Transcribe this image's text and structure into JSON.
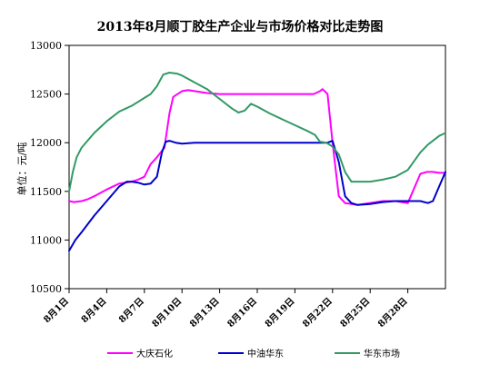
{
  "chart_data": {
    "type": "line",
    "title": "2013年8月顺丁胶生产企业与市场价格对比走势图",
    "ylabel": "单位：元/吨",
    "xlabel": "",
    "ylim": [
      10500,
      13000
    ],
    "yticks": [
      10500,
      11000,
      11500,
      12000,
      12500,
      13000
    ],
    "xlim": [
      1,
      31
    ],
    "x_tick_days": [
      1,
      4,
      7,
      10,
      13,
      16,
      19,
      22,
      25,
      28
    ],
    "x_tick_labels": [
      "8月1日",
      "8月4日",
      "8月7日",
      "8月10日",
      "8月13日",
      "8月16日",
      "8月19日",
      "8月22日",
      "8月25日",
      "8月28日"
    ],
    "grid": false,
    "legend_position": "bottom",
    "series": [
      {
        "name": "大庆石化",
        "color": "#ff00ff",
        "x": [
          1,
          1.4,
          2,
          2.5,
          3,
          4,
          5,
          6,
          6.5,
          7,
          7.5,
          8,
          8.6,
          9,
          9.3,
          10,
          10.5,
          11,
          12,
          13,
          15,
          17,
          19,
          20.5,
          21,
          21.2,
          21.6,
          22,
          22.5,
          23,
          24,
          26,
          27,
          28,
          29,
          29.5,
          30,
          30.5,
          31
        ],
        "y": [
          11400,
          11390,
          11400,
          11420,
          11450,
          11520,
          11580,
          11600,
          11620,
          11650,
          11780,
          11850,
          11950,
          12300,
          12470,
          12530,
          12540,
          12530,
          12510,
          12500,
          12500,
          12500,
          12500,
          12500,
          12530,
          12550,
          12500,
          12000,
          11450,
          11380,
          11360,
          11400,
          11400,
          11380,
          11680,
          11700,
          11700,
          11690,
          11690
        ]
      },
      {
        "name": "中油华东",
        "color": "#0000cc",
        "x": [
          1,
          1.5,
          2,
          3,
          4,
          5,
          5.6,
          6,
          6.5,
          7,
          7.5,
          8,
          8.4,
          8.7,
          9,
          9.5,
          10,
          11,
          13,
          15,
          17,
          19,
          20,
          21,
          21.6,
          22,
          22.5,
          23,
          23.5,
          24,
          25,
          26,
          27,
          28,
          29,
          29.6,
          30,
          30.5,
          31
        ],
        "y": [
          10890,
          11000,
          11080,
          11250,
          11400,
          11550,
          11600,
          11600,
          11590,
          11570,
          11580,
          11650,
          11900,
          12010,
          12020,
          12000,
          11990,
          12000,
          12000,
          12000,
          12000,
          12000,
          12000,
          12000,
          12000,
          12020,
          11800,
          11450,
          11380,
          11360,
          11370,
          11390,
          11400,
          11400,
          11400,
          11380,
          11400,
          11550,
          11700
        ]
      },
      {
        "name": "华东市场",
        "color": "#339966",
        "x": [
          1,
          1.3,
          1.6,
          2,
          3,
          4,
          5,
          5.5,
          6,
          6.5,
          7,
          7.5,
          8,
          8.5,
          9,
          9.6,
          10,
          11,
          12,
          13,
          14,
          14.5,
          15,
          15.5,
          16,
          17,
          18,
          19,
          20,
          20.6,
          21,
          21.5,
          22,
          22.5,
          23,
          23.5,
          24,
          25,
          26,
          27,
          28,
          29,
          29.6,
          30,
          30.5,
          31
        ],
        "y": [
          11500,
          11700,
          11850,
          11950,
          12100,
          12220,
          12320,
          12350,
          12380,
          12420,
          12460,
          12500,
          12580,
          12700,
          12720,
          12710,
          12690,
          12620,
          12550,
          12450,
          12350,
          12310,
          12330,
          12400,
          12370,
          12300,
          12240,
          12180,
          12120,
          12080,
          12010,
          12000,
          11960,
          11880,
          11700,
          11600,
          11600,
          11600,
          11620,
          11650,
          11720,
          11900,
          11980,
          12020,
          12070,
          12100
        ]
      }
    ]
  }
}
